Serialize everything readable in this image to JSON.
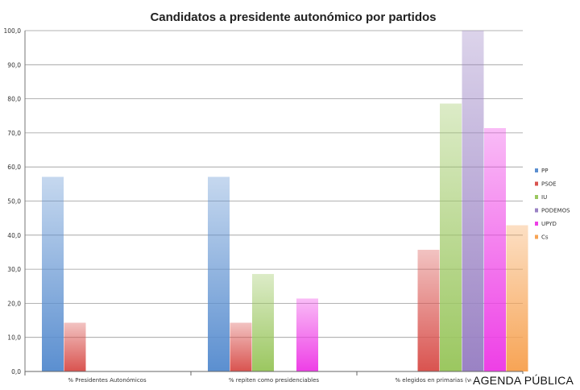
{
  "chart_data": {
    "type": "bar",
    "title": "Candidatos a presidente autonómico por partidos",
    "xlabel": "",
    "ylabel": "",
    "ylim": [
      0,
      100
    ],
    "yticks": [
      "0,0",
      "10,0",
      "20,0",
      "30,0",
      "40,0",
      "50,0",
      "60,0",
      "70,0",
      "80,0",
      "90,0",
      "100,0"
    ],
    "grid": true,
    "legend_position": "right",
    "categories": [
      "% Presidentes Autonómicos",
      "% repiten como presidenciables",
      "% elegidos en primarias (votos)"
    ],
    "series": [
      {
        "name": "PP",
        "color": "#5b8fd0",
        "values": [
          57.1,
          57.1,
          null
        ]
      },
      {
        "name": "PSOE",
        "color": "#d9534f",
        "values": [
          14.3,
          14.3,
          35.7
        ]
      },
      {
        "name": "IU",
        "color": "#9bc760",
        "values": [
          null,
          28.6,
          78.6
        ]
      },
      {
        "name": "PODEMOS",
        "color": "#9a82c4",
        "values": [
          null,
          null,
          100
        ]
      },
      {
        "name": "UPYD",
        "color": "#ee3fe6",
        "values": [
          null,
          21.4,
          71.4
        ]
      },
      {
        "name": "Cs",
        "color": "#f7a455",
        "values": [
          null,
          null,
          42.9
        ]
      }
    ]
  },
  "credit": "AGENDA PÚBLICA"
}
